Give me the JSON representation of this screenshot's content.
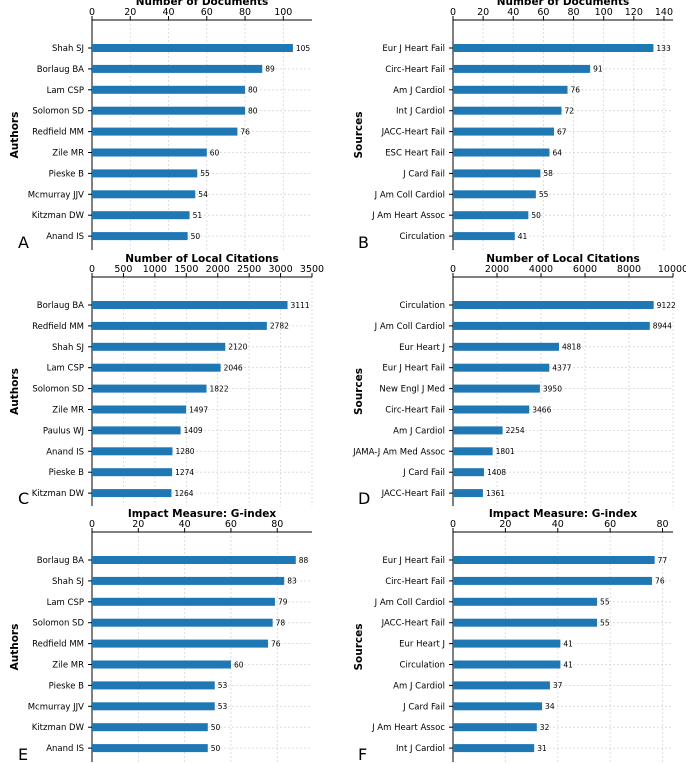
{
  "colors": {
    "bar": "#1f77b4"
  },
  "chart_data": [
    {
      "panel": "A",
      "type": "bar",
      "title": "Number of Documents",
      "ylabel": "Authors",
      "xlim": [
        0,
        115
      ],
      "xticks": [
        0,
        20,
        40,
        60,
        80,
        100
      ],
      "categories": [
        "Shah SJ",
        "Borlaug BA",
        "Lam CSP",
        "Solomon SD",
        "Redfield MM",
        "Zile MR",
        "Pieske B",
        "Mcmurray JJV",
        "Kitzman DW",
        "Anand IS"
      ],
      "values": [
        105,
        89,
        80,
        80,
        76,
        60,
        55,
        54,
        51,
        50
      ]
    },
    {
      "panel": "B",
      "type": "bar",
      "title": "Number of Documents",
      "ylabel": "Sources",
      "xlim": [
        0,
        146
      ],
      "xticks": [
        0,
        20,
        40,
        60,
        80,
        100,
        120,
        140
      ],
      "categories": [
        "Eur J Heart Fail",
        "Circ-Heart Fail",
        "Am J Cardiol",
        "Int J Cardiol",
        "JACC-Heart Fail",
        "ESC Heart Fail",
        "J Card Fail",
        "J Am Coll Cardiol",
        "J Am Heart Assoc",
        "Circulation"
      ],
      "values": [
        133,
        91,
        76,
        72,
        67,
        64,
        58,
        55,
        50,
        41
      ]
    },
    {
      "panel": "C",
      "type": "bar",
      "title": "Number of Local Citations",
      "ylabel": "Authors",
      "xlim": [
        0,
        3500
      ],
      "xticks": [
        0,
        500,
        1000,
        1500,
        2000,
        2500,
        3000,
        3500
      ],
      "categories": [
        "Borlaug BA",
        "Redfield MM",
        "Shah SJ",
        "Lam CSP",
        "Solomon SD",
        "Zile MR",
        "Paulus WJ",
        "Anand IS",
        "Pieske B",
        "Kitzman DW"
      ],
      "values": [
        3111,
        2782,
        2120,
        2046,
        1822,
        1497,
        1409,
        1280,
        1274,
        1264
      ]
    },
    {
      "panel": "D",
      "type": "bar",
      "title": "Number of Local Citations",
      "ylabel": "Sources",
      "xlim": [
        0,
        10000
      ],
      "xticks": [
        0,
        2000,
        4000,
        6000,
        8000,
        10000
      ],
      "categories": [
        "Circulation",
        "J Am Coll Cardiol",
        "Eur Heart J",
        "Eur J Heart Fail",
        "New Engl J Med",
        "Circ-Heart Fail",
        "Am J Cardiol",
        "JAMA-J Am Med Assoc",
        "J Card Fail",
        "JACC-Heart Fail"
      ],
      "values": [
        9122,
        8944,
        4818,
        4377,
        3950,
        3466,
        2254,
        1801,
        1408,
        1361
      ]
    },
    {
      "panel": "E",
      "type": "bar",
      "title": "Impact Measure: G-index",
      "ylabel": "Authors",
      "xlim": [
        0,
        95
      ],
      "xticks": [
        0,
        20,
        40,
        60,
        80
      ],
      "categories": [
        "Borlaug BA",
        "Shah SJ",
        "Lam CSP",
        "Solomon SD",
        "Redfield MM",
        "Zile MR",
        "Pieske B",
        "Mcmurray JJV",
        "Kitzman DW",
        "Anand IS"
      ],
      "values": [
        88,
        83,
        79,
        78,
        76,
        60,
        53,
        53,
        50,
        50
      ]
    },
    {
      "panel": "F",
      "type": "bar",
      "title": "Impact Measure: G-index",
      "ylabel": "Sources",
      "xlim": [
        0,
        84
      ],
      "xticks": [
        0,
        20,
        40,
        60,
        80
      ],
      "categories": [
        "Eur J Heart Fail",
        "Circ-Heart Fail",
        "J Am Coll Cardiol",
        "JACC-Heart Fail",
        "Eur Heart J",
        "Circulation",
        "Am J Cardiol",
        "J Card Fail",
        "J Am Heart Assoc",
        "Int J Cardiol"
      ],
      "values": [
        77,
        76,
        55,
        55,
        41,
        41,
        37,
        34,
        32,
        31
      ]
    }
  ]
}
